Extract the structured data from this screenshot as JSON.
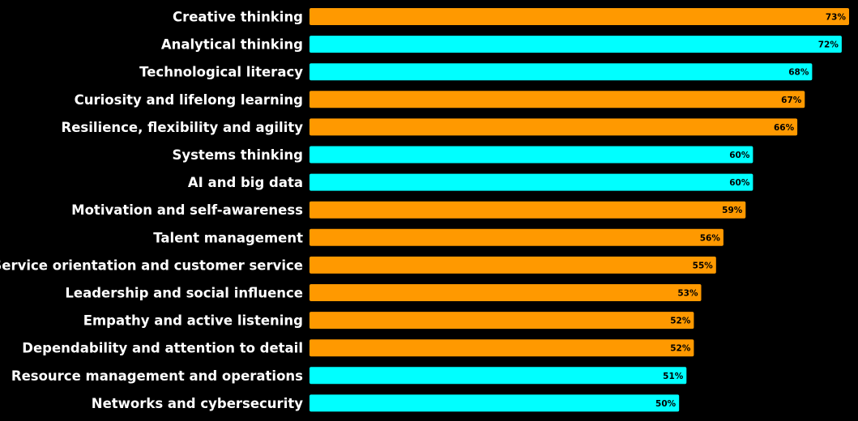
{
  "chart_data": {
    "type": "bar",
    "orientation": "horizontal",
    "title": "",
    "xlabel": "",
    "ylabel": "",
    "value_suffix": "%",
    "grid": false,
    "legend": "none",
    "colors": {
      "background": "#000000",
      "orange": "#ff9900",
      "cyan": "#00ffff",
      "category_text": "#ffffff",
      "value_text": "#000000"
    },
    "categories": [
      "Creative thinking",
      "Analytical thinking",
      "Technological literacy",
      "Curiosity and lifelong learning",
      "Resilience, flexibility and agility",
      "Systems thinking",
      "AI and big data",
      "Motivation and self-awareness",
      "Talent management",
      "Service orientation and customer service",
      "Leadership and social influence",
      "Empathy and active listening",
      "Dependability and attention to detail",
      "Resource management and operations",
      "Networks and cybersecurity"
    ],
    "values": [
      73,
      72,
      68,
      67,
      66,
      60,
      60,
      59,
      56,
      55,
      53,
      52,
      52,
      51,
      50
    ],
    "bar_colors": [
      "orange",
      "cyan",
      "cyan",
      "orange",
      "orange",
      "cyan",
      "cyan",
      "orange",
      "orange",
      "orange",
      "orange",
      "orange",
      "orange",
      "cyan",
      "cyan"
    ]
  }
}
